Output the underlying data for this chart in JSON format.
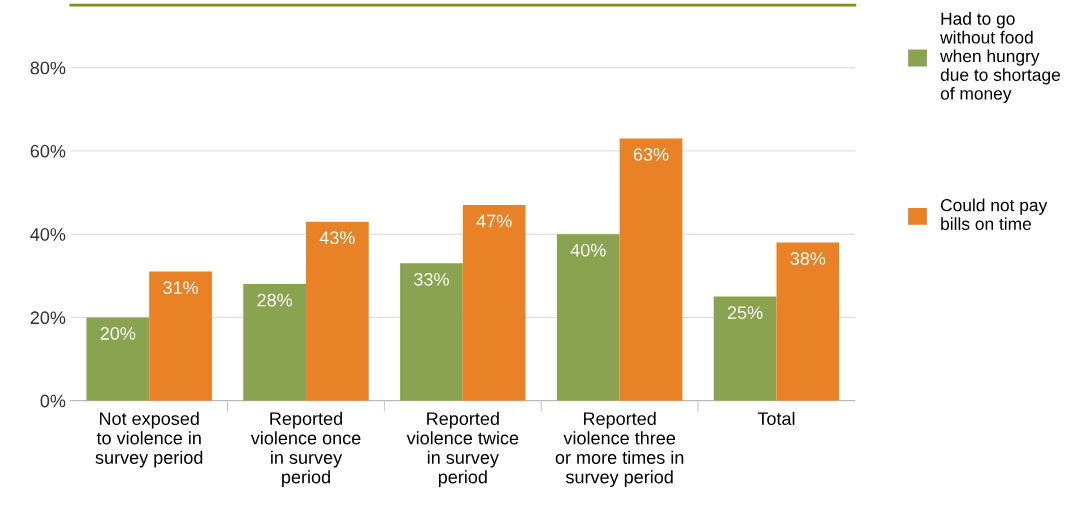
{
  "chart_data": {
    "type": "bar",
    "categories": [
      "Not exposed\nto violence in\nsurvey period",
      "Reported\nviolence once\nin survey\nperiod",
      "Reported\nviolence twice\nin survey\nperiod",
      "Reported\nviolence three\nor more times in\nsurvey period",
      "Total"
    ],
    "series": [
      {
        "name": "Had to go\nwithout food\nwhen hungry\ndue to shortage\nof money",
        "color": "#8aa350",
        "values": [
          20,
          28,
          33,
          40,
          25
        ],
        "value_labels": [
          "20%",
          "28%",
          "33%",
          "40%",
          "25%"
        ]
      },
      {
        "name": "Could not pay\nbills on time",
        "color": "#e98227",
        "values": [
          31,
          43,
          47,
          63,
          38
        ],
        "value_labels": [
          "31%",
          "43%",
          "47%",
          "63%",
          "38%"
        ]
      }
    ],
    "ylim": [
      0,
      95
    ],
    "yticks": [
      {
        "value": 0,
        "label": "0%"
      },
      {
        "value": 20,
        "label": "20%"
      },
      {
        "value": 40,
        "label": "40%"
      },
      {
        "value": 60,
        "label": "60%"
      },
      {
        "value": 80,
        "label": "80%"
      }
    ],
    "grid": "y",
    "legend": "right"
  }
}
